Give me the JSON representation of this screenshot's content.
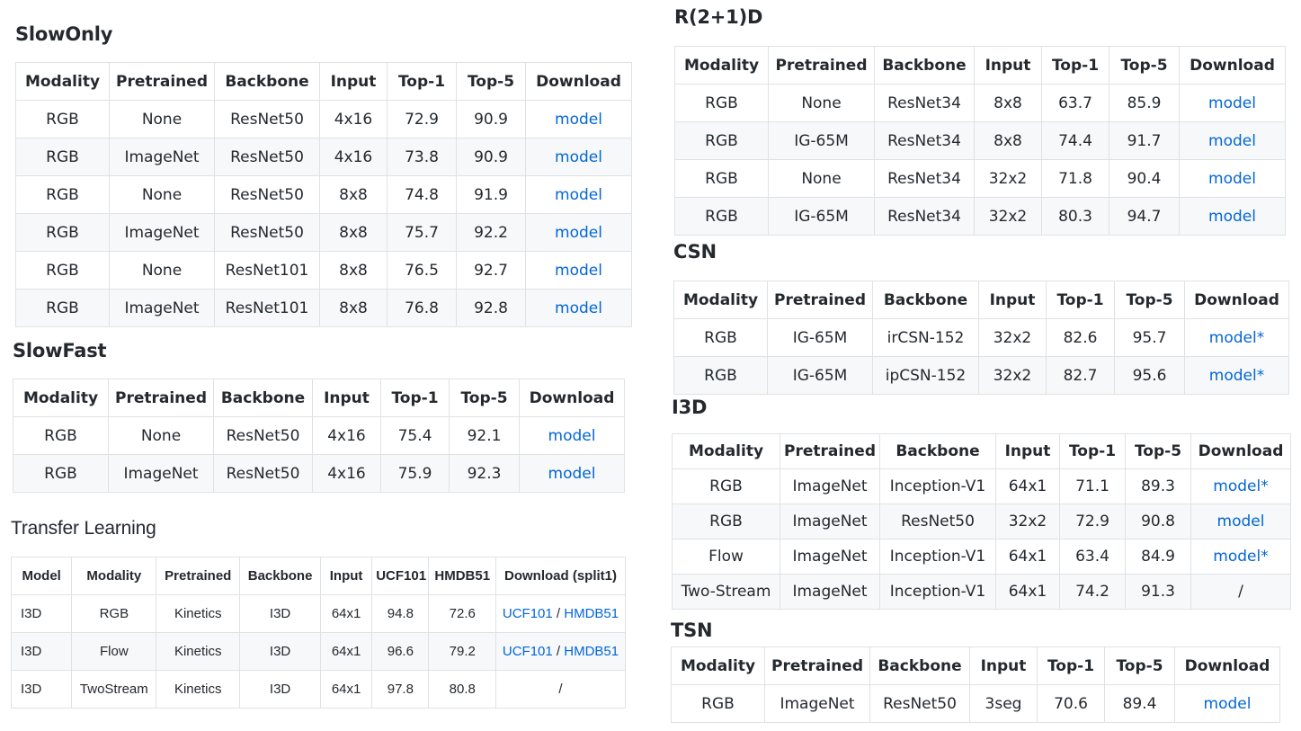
{
  "slowonly": {
    "title": "SlowOnly",
    "headers": [
      "Modality",
      "Pretrained",
      "Backbone",
      "Input",
      "Top-1",
      "Top-5",
      "Download"
    ],
    "rows": [
      [
        "RGB",
        "None",
        "ResNet50",
        "4x16",
        "72.9",
        "90.9",
        "model"
      ],
      [
        "RGB",
        "ImageNet",
        "ResNet50",
        "4x16",
        "73.8",
        "90.9",
        "model"
      ],
      [
        "RGB",
        "None",
        "ResNet50",
        "8x8",
        "74.8",
        "91.9",
        "model"
      ],
      [
        "RGB",
        "ImageNet",
        "ResNet50",
        "8x8",
        "75.7",
        "92.2",
        "model"
      ],
      [
        "RGB",
        "None",
        "ResNet101",
        "8x8",
        "76.5",
        "92.7",
        "model"
      ],
      [
        "RGB",
        "ImageNet",
        "ResNet101",
        "8x8",
        "76.8",
        "92.8",
        "model"
      ]
    ]
  },
  "slowfast": {
    "title": "SlowFast",
    "headers": [
      "Modality",
      "Pretrained",
      "Backbone",
      "Input",
      "Top-1",
      "Top-5",
      "Download"
    ],
    "rows": [
      [
        "RGB",
        "None",
        "ResNet50",
        "4x16",
        "75.4",
        "92.1",
        "model"
      ],
      [
        "RGB",
        "ImageNet",
        "ResNet50",
        "4x16",
        "75.9",
        "92.3",
        "model"
      ]
    ]
  },
  "transfer": {
    "title": "Transfer Learning",
    "headers": [
      "Model",
      "Modality",
      "Pretrained",
      "Backbone",
      "Input",
      "UCF101",
      "HMDB51",
      "Download (split1)"
    ],
    "rows": [
      [
        "I3D",
        "RGB",
        "Kinetics",
        "I3D",
        "64x1",
        "94.8",
        "72.6"
      ],
      [
        "I3D",
        "Flow",
        "Kinetics",
        "I3D",
        "64x1",
        "96.6",
        "79.2"
      ],
      [
        "I3D",
        "TwoStream",
        "Kinetics",
        "I3D",
        "64x1",
        "97.8",
        "80.8"
      ]
    ],
    "links": {
      "ucf": "UCF101",
      "sep": " / ",
      "hmdb": "HMDB51",
      "none": "/"
    }
  },
  "r21d": {
    "title": "R(2+1)D",
    "headers": [
      "Modality",
      "Pretrained",
      "Backbone",
      "Input",
      "Top-1",
      "Top-5",
      "Download"
    ],
    "rows": [
      [
        "RGB",
        "None",
        "ResNet34",
        "8x8",
        "63.7",
        "85.9",
        "model"
      ],
      [
        "RGB",
        "IG-65M",
        "ResNet34",
        "8x8",
        "74.4",
        "91.7",
        "model"
      ],
      [
        "RGB",
        "None",
        "ResNet34",
        "32x2",
        "71.8",
        "90.4",
        "model"
      ],
      [
        "RGB",
        "IG-65M",
        "ResNet34",
        "32x2",
        "80.3",
        "94.7",
        "model"
      ]
    ]
  },
  "csn": {
    "title": "CSN",
    "headers": [
      "Modality",
      "Pretrained",
      "Backbone",
      "Input",
      "Top-1",
      "Top-5",
      "Download"
    ],
    "rows": [
      [
        "RGB",
        "IG-65M",
        "irCSN-152",
        "32x2",
        "82.6",
        "95.7",
        "model*"
      ],
      [
        "RGB",
        "IG-65M",
        "ipCSN-152",
        "32x2",
        "82.7",
        "95.6",
        "model*"
      ]
    ]
  },
  "i3d": {
    "title": "I3D",
    "headers": [
      "Modality",
      "Pretrained",
      "Backbone",
      "Input",
      "Top-1",
      "Top-5",
      "Download"
    ],
    "rows": [
      [
        "RGB",
        "ImageNet",
        "Inception-V1",
        "64x1",
        "71.1",
        "89.3",
        "model*"
      ],
      [
        "RGB",
        "ImageNet",
        "ResNet50",
        "32x2",
        "72.9",
        "90.8",
        "model"
      ],
      [
        "Flow",
        "ImageNet",
        "Inception-V1",
        "64x1",
        "63.4",
        "84.9",
        "model*"
      ],
      [
        "Two-Stream",
        "ImageNet",
        "Inception-V1",
        "64x1",
        "74.2",
        "91.3",
        "/"
      ]
    ]
  },
  "tsn": {
    "title": "TSN",
    "headers": [
      "Modality",
      "Pretrained",
      "Backbone",
      "Input",
      "Top-1",
      "Top-5",
      "Download"
    ],
    "rows": [
      [
        "RGB",
        "ImageNet",
        "ResNet50",
        "3seg",
        "70.6",
        "89.4",
        "model"
      ]
    ]
  }
}
